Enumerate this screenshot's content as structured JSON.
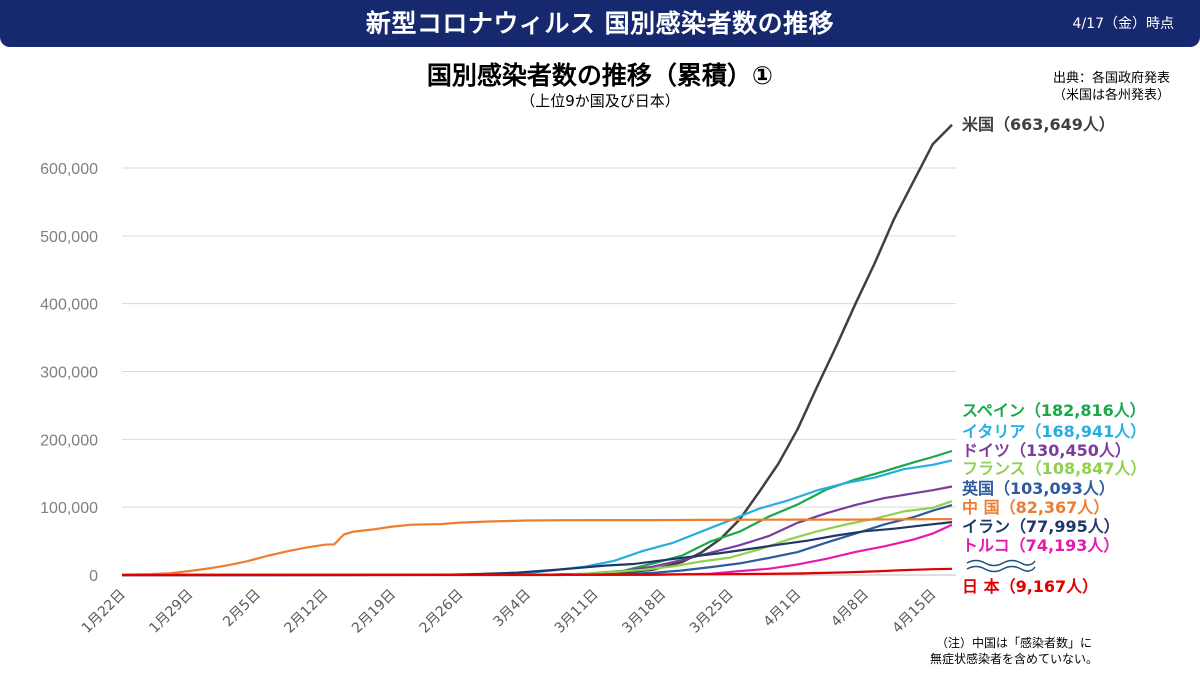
{
  "header": {
    "title": "新型コロナウィルス 国別感染者数の推移",
    "date": "4/17（金）時点"
  },
  "source": {
    "line1": "出典：各国政府発表",
    "line2": "（米国は各州発表）"
  },
  "note": {
    "line1": "（注）中国は「感染者数」に",
    "line2": "無症状感染者を含めていない。"
  },
  "colors": {
    "header_bg": "#16286e",
    "grid": "#d9d9d9",
    "axis_text": "#7f7f7f"
  },
  "chart_data": {
    "type": "line",
    "title": "国別感染者数の推移（累積）①",
    "subtitle": "（上位9か国及び日本）",
    "xlabel": "",
    "ylabel": "",
    "ylim": [
      0,
      600000
    ],
    "y_ticks": [
      0,
      100000,
      200000,
      300000,
      400000,
      500000,
      600000
    ],
    "y_tick_labels": [
      "0",
      "100,000",
      "200,000",
      "300,000",
      "400,000",
      "500,000",
      "600,000"
    ],
    "x_day_range": [
      0,
      86
    ],
    "x_ticks": [
      {
        "day": 0,
        "label": "1月22日"
      },
      {
        "day": 7,
        "label": "1月29日"
      },
      {
        "day": 14,
        "label": "2月5日"
      },
      {
        "day": 21,
        "label": "2月12日"
      },
      {
        "day": 28,
        "label": "2月19日"
      },
      {
        "day": 35,
        "label": "2月26日"
      },
      {
        "day": 42,
        "label": "3月4日"
      },
      {
        "day": 49,
        "label": "3月11日"
      },
      {
        "day": 56,
        "label": "3月18日"
      },
      {
        "day": 63,
        "label": "3月25日"
      },
      {
        "day": 70,
        "label": "4月1日"
      },
      {
        "day": 77,
        "label": "4月8日"
      },
      {
        "day": 84,
        "label": "4月15日"
      }
    ],
    "grid": true,
    "series": [
      {
        "name": "米国",
        "label": "米国（663,649人）",
        "color": "#404040",
        "points": [
          [
            0,
            0
          ],
          [
            40,
            100
          ],
          [
            45,
            200
          ],
          [
            50,
            1000
          ],
          [
            55,
            7800
          ],
          [
            58,
            19000
          ],
          [
            60,
            33000
          ],
          [
            62,
            53000
          ],
          [
            64,
            82000
          ],
          [
            66,
            122000
          ],
          [
            68,
            164000
          ],
          [
            70,
            215000
          ],
          [
            72,
            277000
          ],
          [
            74,
            337000
          ],
          [
            76,
            400000
          ],
          [
            78,
            460000
          ],
          [
            80,
            525000
          ],
          [
            82,
            580000
          ],
          [
            84,
            635000
          ],
          [
            86,
            663649
          ]
        ]
      },
      {
        "name": "スペイン",
        "label": "スペイン（182,816人）",
        "color": "#1aa84b",
        "points": [
          [
            0,
            0
          ],
          [
            40,
            150
          ],
          [
            44,
            500
          ],
          [
            48,
            1700
          ],
          [
            52,
            6400
          ],
          [
            55,
            17000
          ],
          [
            58,
            28500
          ],
          [
            61,
            49500
          ],
          [
            64,
            64000
          ],
          [
            67,
            86000
          ],
          [
            70,
            104000
          ],
          [
            73,
            126000
          ],
          [
            76,
            141000
          ],
          [
            79,
            153000
          ],
          [
            82,
            166000
          ],
          [
            84,
            174000
          ],
          [
            86,
            182816
          ]
        ]
      },
      {
        "name": "イタリア",
        "label": "イタリア（168,941人）",
        "color": "#27aee0",
        "points": [
          [
            0,
            0
          ],
          [
            35,
            400
          ],
          [
            38,
            1700
          ],
          [
            42,
            3000
          ],
          [
            45,
            7400
          ],
          [
            48,
            12400
          ],
          [
            51,
            21000
          ],
          [
            54,
            35700
          ],
          [
            57,
            47000
          ],
          [
            60,
            63900
          ],
          [
            63,
            80600
          ],
          [
            66,
            97700
          ],
          [
            69,
            110000
          ],
          [
            72,
            124600
          ],
          [
            75,
            135600
          ],
          [
            78,
            143600
          ],
          [
            81,
            156000
          ],
          [
            84,
            162500
          ],
          [
            86,
            168941
          ]
        ]
      },
      {
        "name": "ドイツ",
        "label": "ドイツ（130,450人）",
        "color": "#7a3d9f",
        "points": [
          [
            0,
            0
          ],
          [
            40,
            100
          ],
          [
            44,
            500
          ],
          [
            48,
            1600
          ],
          [
            52,
            5800
          ],
          [
            55,
            12300
          ],
          [
            58,
            22000
          ],
          [
            61,
            32900
          ],
          [
            64,
            43900
          ],
          [
            67,
            57300
          ],
          [
            70,
            77000
          ],
          [
            73,
            91100
          ],
          [
            76,
            103300
          ],
          [
            79,
            113300
          ],
          [
            82,
            120500
          ],
          [
            84,
            125000
          ],
          [
            86,
            130450
          ]
        ]
      },
      {
        "name": "フランス",
        "label": "フランス（108,847人）",
        "color": "#92d050",
        "points": [
          [
            0,
            0
          ],
          [
            42,
            100
          ],
          [
            45,
            400
          ],
          [
            48,
            1800
          ],
          [
            51,
            4500
          ],
          [
            54,
            7700
          ],
          [
            57,
            12600
          ],
          [
            60,
            19900
          ],
          [
            63,
            25600
          ],
          [
            66,
            37600
          ],
          [
            69,
            52100
          ],
          [
            72,
            64300
          ],
          [
            75,
            74400
          ],
          [
            78,
            83000
          ],
          [
            81,
            93800
          ],
          [
            84,
            99000
          ],
          [
            86,
            108847
          ]
        ]
      },
      {
        "name": "英国",
        "label": "英国（103,093人）",
        "color": "#2f5b9e",
        "points": [
          [
            0,
            0
          ],
          [
            45,
            100
          ],
          [
            48,
            500
          ],
          [
            52,
            1500
          ],
          [
            55,
            3300
          ],
          [
            58,
            6600
          ],
          [
            61,
            11600
          ],
          [
            64,
            17100
          ],
          [
            67,
            25100
          ],
          [
            70,
            33700
          ],
          [
            73,
            47800
          ],
          [
            76,
            61000
          ],
          [
            79,
            74600
          ],
          [
            82,
            85200
          ],
          [
            84,
            94800
          ],
          [
            86,
            103093
          ]
        ]
      },
      {
        "name": "イラン",
        "label": "イラン（77,995人）",
        "color": "#203864",
        "points": [
          [
            0,
            0
          ],
          [
            28,
            20
          ],
          [
            33,
            200
          ],
          [
            37,
            1500
          ],
          [
            41,
            3500
          ],
          [
            44,
            6600
          ],
          [
            47,
            10000
          ],
          [
            50,
            13900
          ],
          [
            53,
            16200
          ],
          [
            56,
            21600
          ],
          [
            59,
            27000
          ],
          [
            62,
            32300
          ],
          [
            65,
            38300
          ],
          [
            68,
            44600
          ],
          [
            71,
            50500
          ],
          [
            74,
            58200
          ],
          [
            77,
            64600
          ],
          [
            80,
            68200
          ],
          [
            83,
            73300
          ],
          [
            86,
            77995
          ]
        ]
      },
      {
        "name": "トルコ",
        "label": "トルコ（74,193人）",
        "color": "#e61aac",
        "points": [
          [
            0,
            0
          ],
          [
            55,
            200
          ],
          [
            58,
            900
          ],
          [
            61,
            1900
          ],
          [
            64,
            5700
          ],
          [
            67,
            9200
          ],
          [
            70,
            15700
          ],
          [
            73,
            23900
          ],
          [
            76,
            34100
          ],
          [
            79,
            42300
          ],
          [
            82,
            52200
          ],
          [
            84,
            61000
          ],
          [
            86,
            74193
          ]
        ]
      },
      {
        "name": "中国",
        "label": "中 国（82,367人）",
        "color": "#ed7d31",
        "points": [
          [
            0,
            547
          ],
          [
            3,
            1300
          ],
          [
            5,
            2700
          ],
          [
            7,
            5900
          ],
          [
            9,
            9700
          ],
          [
            11,
            14400
          ],
          [
            13,
            20400
          ],
          [
            15,
            28000
          ],
          [
            17,
            34500
          ],
          [
            19,
            40200
          ],
          [
            21,
            44600
          ],
          [
            22,
            45200
          ],
          [
            23,
            59800
          ],
          [
            24,
            64000
          ],
          [
            26,
            67100
          ],
          [
            28,
            71300
          ],
          [
            30,
            74200
          ],
          [
            33,
            75100
          ],
          [
            35,
            77200
          ],
          [
            38,
            78800
          ],
          [
            42,
            80300
          ],
          [
            46,
            80800
          ],
          [
            50,
            80900
          ],
          [
            55,
            81000
          ],
          [
            60,
            81300
          ],
          [
            65,
            81500
          ],
          [
            70,
            81600
          ],
          [
            75,
            81700
          ],
          [
            80,
            81900
          ],
          [
            84,
            82200
          ],
          [
            86,
            82367
          ]
        ]
      },
      {
        "name": "日本",
        "label": "日 本（9,167人）",
        "color": "#e00000",
        "points": [
          [
            0,
            0
          ],
          [
            30,
            100
          ],
          [
            40,
            300
          ],
          [
            50,
            600
          ],
          [
            60,
            1100
          ],
          [
            65,
            1500
          ],
          [
            70,
            2200
          ],
          [
            75,
            3900
          ],
          [
            78,
            5300
          ],
          [
            81,
            7200
          ],
          [
            84,
            8600
          ],
          [
            86,
            9167
          ]
        ]
      }
    ]
  }
}
